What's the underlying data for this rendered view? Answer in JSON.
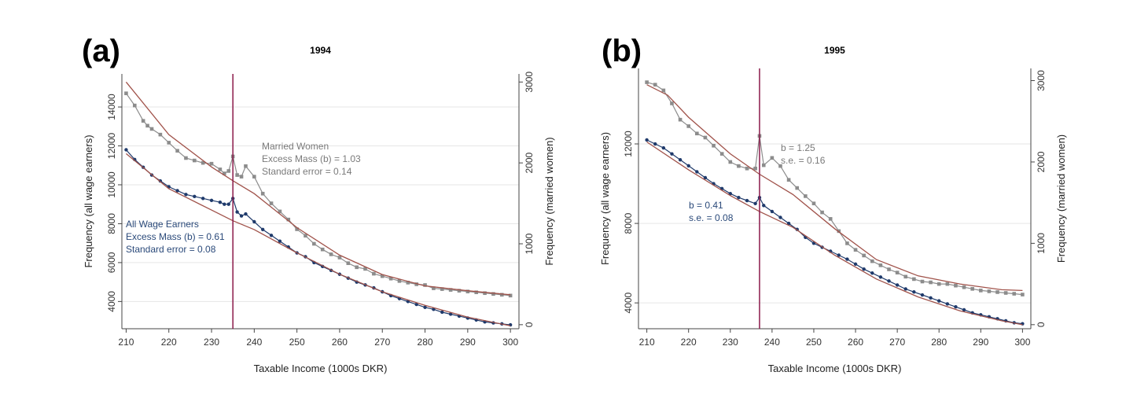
{
  "chart_data": [
    {
      "type": "line",
      "panel_label": "(a)",
      "title": "1994",
      "xlabel": "Taxable Income (1000s DKR)",
      "ylabel_left": "Frequency (all wage earners)",
      "ylabel_right": "Frequency (married women)",
      "xlim": [
        209,
        302
      ],
      "ylim_left": [
        2600,
        15700
      ],
      "ylim_right": [
        -50,
        3100
      ],
      "x_ticks": [
        210,
        220,
        230,
        240,
        250,
        260,
        270,
        280,
        290,
        300
      ],
      "y_ticks_left": [
        4000,
        6000,
        8000,
        10000,
        12000,
        14000
      ],
      "y_ticks_right": [
        0,
        1000,
        2000,
        3000
      ],
      "gridlines": true,
      "kink_x": 235,
      "series": [
        {
          "axis": "right",
          "color": "#8c8c8c",
          "marker": "square",
          "x": [
            210,
            212,
            214,
            215,
            216,
            218,
            220,
            222,
            224,
            226,
            228,
            230,
            232,
            233,
            234,
            235,
            236,
            237,
            238,
            240,
            242,
            244,
            246,
            248,
            250,
            252,
            254,
            256,
            258,
            260,
            262,
            264,
            266,
            268,
            270,
            272,
            274,
            276,
            278,
            280,
            282,
            284,
            286,
            288,
            290,
            292,
            294,
            296,
            298,
            300
          ],
          "y": [
            2860,
            2710,
            2520,
            2460,
            2420,
            2350,
            2250,
            2150,
            2060,
            2030,
            2000,
            1990,
            1920,
            1870,
            1900,
            2080,
            1850,
            1830,
            1960,
            1830,
            1620,
            1500,
            1400,
            1300,
            1180,
            1100,
            1000,
            930,
            870,
            830,
            760,
            710,
            690,
            630,
            600,
            570,
            540,
            520,
            500,
            490,
            450,
            440,
            430,
            420,
            410,
            400,
            390,
            380,
            370,
            360
          ]
        },
        {
          "axis": "left",
          "color": "#1f3a6b",
          "marker": "circle",
          "x": [
            210,
            212,
            214,
            216,
            218,
            220,
            222,
            224,
            226,
            228,
            230,
            232,
            233,
            234,
            235,
            236,
            237,
            238,
            240,
            242,
            244,
            246,
            248,
            250,
            252,
            254,
            256,
            258,
            260,
            262,
            264,
            266,
            268,
            270,
            272,
            274,
            276,
            278,
            280,
            282,
            284,
            286,
            288,
            290,
            292,
            294,
            296,
            298,
            300
          ],
          "y": [
            11800,
            11300,
            10900,
            10500,
            10200,
            9900,
            9700,
            9500,
            9400,
            9300,
            9200,
            9100,
            9000,
            9000,
            9300,
            8600,
            8400,
            8500,
            8100,
            7700,
            7400,
            7100,
            6800,
            6500,
            6300,
            6000,
            5800,
            5600,
            5400,
            5200,
            5000,
            4850,
            4700,
            4500,
            4300,
            4150,
            4000,
            3850,
            3700,
            3600,
            3450,
            3350,
            3250,
            3150,
            3050,
            2950,
            2900,
            2850,
            2800
          ]
        },
        {
          "axis": "right",
          "color": "#a0524a",
          "marker": "none",
          "x": [
            210,
            220,
            230,
            235,
            240,
            250,
            260,
            270,
            280,
            290,
            300
          ],
          "y": [
            3000,
            2350,
            1950,
            1780,
            1620,
            1200,
            860,
            620,
            480,
            420,
            370
          ]
        },
        {
          "axis": "left",
          "color": "#a0524a",
          "marker": "none",
          "x": [
            210,
            220,
            230,
            235,
            240,
            250,
            260,
            270,
            280,
            290,
            300
          ],
          "y": [
            11600,
            9800,
            8700,
            8150,
            7700,
            6500,
            5400,
            4500,
            3800,
            3200,
            2750
          ]
        }
      ],
      "annotations": [
        {
          "lines": [
            "Married Women",
            "Excess Mass (b) = 1.03",
            "Standard error = 0.14"
          ],
          "color": "#7a7a7a"
        },
        {
          "lines": [
            "All Wage Earners",
            "Excess Mass (b) = 0.61",
            "Standard error = 0.08"
          ],
          "color": "#2b4a7a"
        }
      ]
    },
    {
      "type": "line",
      "panel_label": "(b)",
      "title": "1995",
      "xlabel": "Taxable Income (1000s DKR)",
      "ylabel_left": "Frequency (all wage earners)",
      "ylabel_right": "Frequency (married women)",
      "xlim": [
        208,
        302
      ],
      "ylim_left": [
        2700,
        15800
      ],
      "ylim_right": [
        -50,
        3150
      ],
      "x_ticks": [
        210,
        220,
        230,
        240,
        250,
        260,
        270,
        280,
        290,
        300
      ],
      "y_ticks_left": [
        4000,
        8000,
        12000
      ],
      "y_ticks_right": [
        0,
        1000,
        2000,
        3000
      ],
      "gridlines": true,
      "kink_x": 237,
      "series": [
        {
          "axis": "right",
          "color": "#8c8c8c",
          "marker": "square",
          "x": [
            210,
            212,
            214,
            216,
            218,
            220,
            222,
            224,
            226,
            228,
            230,
            232,
            234,
            236,
            237,
            238,
            240,
            242,
            244,
            246,
            248,
            250,
            252,
            254,
            256,
            258,
            260,
            262,
            264,
            266,
            268,
            270,
            272,
            274,
            276,
            278,
            280,
            282,
            284,
            286,
            288,
            290,
            292,
            294,
            296,
            298,
            300
          ],
          "y": [
            2980,
            2950,
            2880,
            2720,
            2520,
            2440,
            2350,
            2300,
            2200,
            2100,
            2000,
            1950,
            1920,
            1920,
            2320,
            1960,
            2050,
            1950,
            1780,
            1680,
            1580,
            1490,
            1380,
            1300,
            1150,
            1000,
            920,
            850,
            780,
            730,
            680,
            640,
            590,
            560,
            530,
            520,
            500,
            500,
            480,
            460,
            440,
            420,
            410,
            400,
            390,
            380,
            370
          ]
        },
        {
          "axis": "left",
          "color": "#1f3a6b",
          "marker": "circle",
          "x": [
            210,
            212,
            214,
            216,
            218,
            220,
            222,
            224,
            226,
            228,
            230,
            232,
            234,
            236,
            237,
            238,
            240,
            242,
            244,
            246,
            248,
            250,
            252,
            254,
            256,
            258,
            260,
            262,
            264,
            266,
            268,
            270,
            272,
            274,
            276,
            278,
            280,
            282,
            284,
            286,
            288,
            290,
            292,
            294,
            296,
            298,
            300
          ],
          "y": [
            12200,
            12000,
            11800,
            11500,
            11200,
            10900,
            10600,
            10300,
            10000,
            9750,
            9500,
            9300,
            9150,
            9000,
            9300,
            8900,
            8600,
            8300,
            8000,
            7700,
            7300,
            7000,
            6800,
            6600,
            6400,
            6200,
            5950,
            5700,
            5500,
            5300,
            5100,
            4900,
            4700,
            4550,
            4400,
            4250,
            4100,
            3950,
            3800,
            3650,
            3500,
            3400,
            3300,
            3200,
            3100,
            3000,
            2950
          ]
        },
        {
          "axis": "right",
          "color": "#a0524a",
          "marker": "none",
          "x": [
            210,
            215,
            220,
            230,
            237,
            245,
            255,
            265,
            275,
            285,
            295,
            300
          ],
          "y": [
            2950,
            2820,
            2550,
            2100,
            1850,
            1600,
            1180,
            800,
            600,
            500,
            430,
            420
          ]
        },
        {
          "axis": "left",
          "color": "#a0524a",
          "marker": "none",
          "x": [
            210,
            220,
            230,
            237,
            245,
            255,
            265,
            275,
            285,
            295,
            300
          ],
          "y": [
            12100,
            10700,
            9400,
            8600,
            7800,
            6400,
            5200,
            4300,
            3600,
            3100,
            2900
          ]
        }
      ],
      "annotations": [
        {
          "lines": [
            "b = 1.25",
            "s.e. = 0.16"
          ],
          "color": "#7a7a7a"
        },
        {
          "lines": [
            "b = 0.41",
            "s.e. = 0.08"
          ],
          "color": "#2b4a7a"
        }
      ]
    }
  ]
}
